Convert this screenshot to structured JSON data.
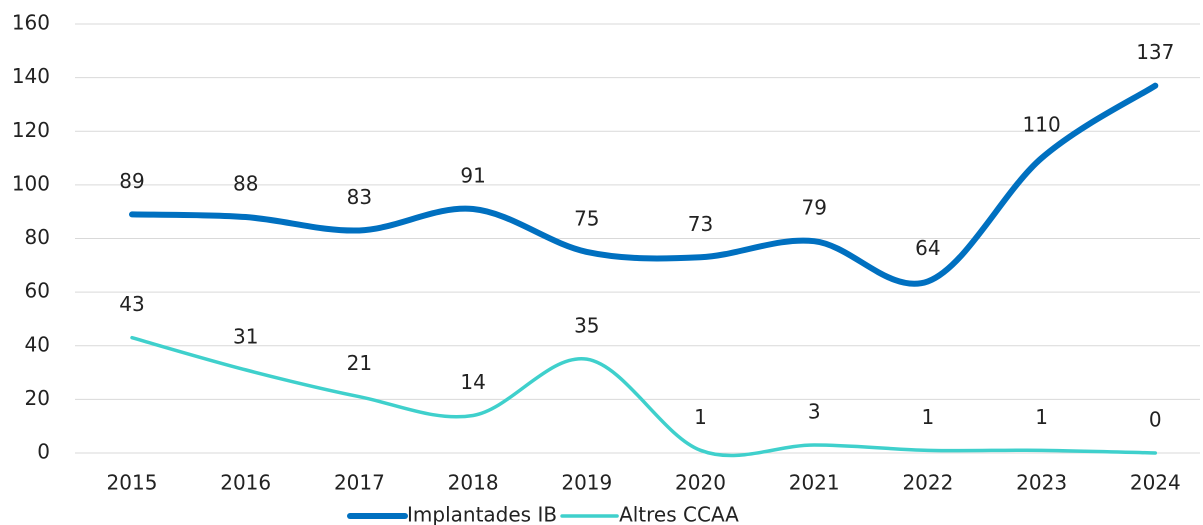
{
  "chart_data": {
    "type": "line",
    "categories": [
      "2015",
      "2016",
      "2017",
      "2018",
      "2019",
      "2020",
      "2021",
      "2022",
      "2023",
      "2024"
    ],
    "series": [
      {
        "name": "Implantades IB",
        "color": "#0070c0",
        "values": [
          89,
          88,
          83,
          91,
          75,
          73,
          79,
          64,
          110,
          137
        ]
      },
      {
        "name": "Altres CCAA",
        "color": "#3fd0cc",
        "values": [
          43,
          31,
          21,
          14,
          35,
          1,
          3,
          1,
          1,
          0
        ]
      }
    ],
    "ylim": [
      0,
      160
    ],
    "yticks": [
      0,
      20,
      40,
      60,
      80,
      100,
      120,
      140,
      160
    ],
    "grid": true,
    "legend": "bottom"
  }
}
